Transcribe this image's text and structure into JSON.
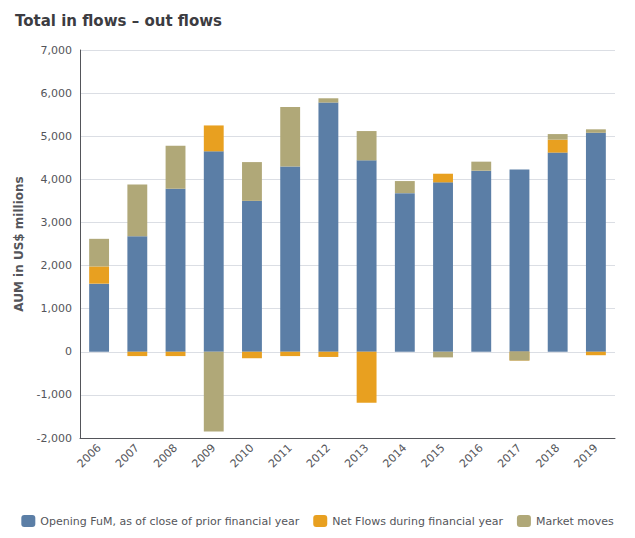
{
  "chart_data": {
    "type": "bar",
    "title": "Total in flows – out flows",
    "ylabel": "AUM in US$ millions",
    "categories": [
      "2006",
      "2007",
      "2008",
      "2009",
      "2010",
      "2011",
      "2012",
      "2013",
      "2014",
      "2015",
      "2016",
      "2017",
      "2018",
      "2019"
    ],
    "series": [
      {
        "name": "Opening FuM, as of close of prior financial year",
        "color": "#5b7ea6",
        "values": [
          1580,
          2680,
          3780,
          4650,
          3500,
          4300,
          5780,
          4440,
          3680,
          3930,
          4200,
          4230,
          4620,
          5080
        ]
      },
      {
        "name": "Net Flows during financial year",
        "color": "#e8a020",
        "values": [
          400,
          -100,
          -100,
          600,
          -150,
          -100,
          -120,
          -1180,
          0,
          200,
          0,
          -200,
          300,
          -80
        ]
      },
      {
        "name": "Market moves",
        "color": "#b0a878",
        "values": [
          640,
          1200,
          1000,
          -1850,
          900,
          1380,
          100,
          680,
          280,
          -130,
          210,
          -200,
          130,
          80
        ]
      }
    ],
    "ylim": [
      -2000,
      7000
    ],
    "yticks": [
      {
        "value": -2000,
        "label": "-2,000"
      },
      {
        "value": -1000,
        "label": "-1,000"
      },
      0,
      {
        "value": 1000,
        "label": "1,000"
      },
      {
        "value": 2000,
        "label": "2,000"
      },
      {
        "value": 3000,
        "label": "3,000"
      },
      {
        "value": 4000,
        "label": "4,000"
      },
      {
        "value": 5000,
        "label": "5,000"
      },
      {
        "value": 6000,
        "label": "6,000"
      },
      {
        "value": 7000,
        "label": "7,000"
      }
    ],
    "grid": true,
    "stacked": true,
    "legend": "bottom"
  }
}
